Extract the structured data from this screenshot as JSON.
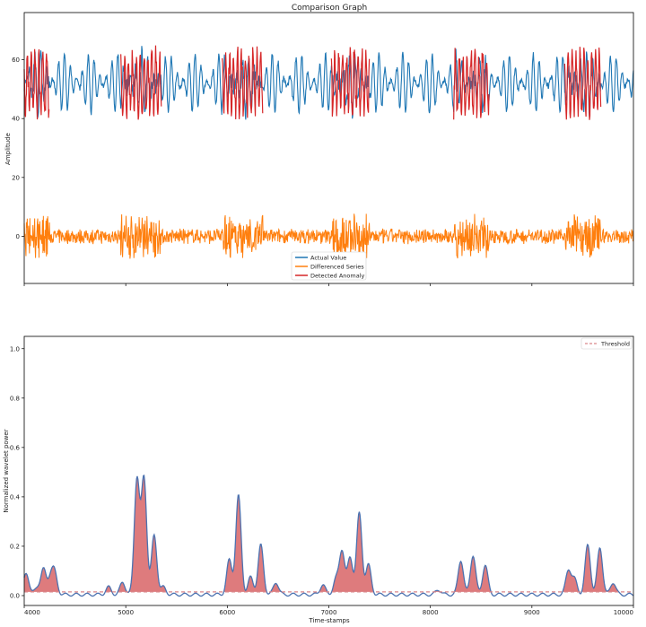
{
  "chart_data": [
    {
      "type": "line",
      "title": "Comparison Graph",
      "xlabel": "",
      "ylabel": "Amplitude",
      "xlim": [
        4000,
        10000
      ],
      "ylim": [
        -16,
        76
      ],
      "yticks": [
        0,
        20,
        40,
        60
      ],
      "grid": false,
      "legend_placement": "bottom-center",
      "series": [
        {
          "name": "Actual Value",
          "color": "#1f77b4",
          "baseline": 52,
          "amplitude": 10
        },
        {
          "name": "Differenced Series",
          "color": "#ff7f0e",
          "baseline": 0,
          "amplitude": 3
        },
        {
          "name": "Detected Anomaly",
          "color": "#d62728",
          "baseline": 52,
          "amplitude": 13
        }
      ],
      "anomaly_windows": [
        {
          "start": 4000,
          "end": 4250
        },
        {
          "start": 4950,
          "end": 5350
        },
        {
          "start": 5950,
          "end": 6350
        },
        {
          "start": 7020,
          "end": 7400
        },
        {
          "start": 8230,
          "end": 8580
        },
        {
          "start": 9320,
          "end": 9680
        }
      ]
    },
    {
      "type": "area",
      "xlabel": "Time-stamps",
      "ylabel": "Normalized wavelet power",
      "xlim": [
        4000,
        10000
      ],
      "ylim": [
        -0.04,
        1.05
      ],
      "xticks": [
        4000,
        5000,
        6000,
        7000,
        8000,
        9000,
        10000
      ],
      "yticks": [
        0.0,
        0.2,
        0.4,
        0.6,
        0.8,
        1.0
      ],
      "grid": false,
      "legend_placement": "top-right",
      "series": [
        {
          "name": "Threshold",
          "color": "#d9868a",
          "style": "dashed",
          "value": 0.015
        },
        {
          "name": "power",
          "color": "#4c72b0",
          "fill": "#d86466"
        }
      ],
      "peaks": [
        {
          "x": 4020,
          "y": 0.09
        },
        {
          "x": 4130,
          "y": 0.03
        },
        {
          "x": 4190,
          "y": 0.1
        },
        {
          "x": 4260,
          "y": 0.07
        },
        {
          "x": 4300,
          "y": 0.08
        },
        {
          "x": 4830,
          "y": 0.03
        },
        {
          "x": 4970,
          "y": 0.05
        },
        {
          "x": 5110,
          "y": 0.47
        },
        {
          "x": 5180,
          "y": 0.47
        },
        {
          "x": 5280,
          "y": 0.24
        },
        {
          "x": 5370,
          "y": 0.03
        },
        {
          "x": 6020,
          "y": 0.14
        },
        {
          "x": 6110,
          "y": 0.4
        },
        {
          "x": 6230,
          "y": 0.07
        },
        {
          "x": 6330,
          "y": 0.2
        },
        {
          "x": 6480,
          "y": 0.05
        },
        {
          "x": 6940,
          "y": 0.04
        },
        {
          "x": 7070,
          "y": 0.06
        },
        {
          "x": 7130,
          "y": 0.18
        },
        {
          "x": 7210,
          "y": 0.15
        },
        {
          "x": 7300,
          "y": 0.33
        },
        {
          "x": 7390,
          "y": 0.12
        },
        {
          "x": 8080,
          "y": 0.02
        },
        {
          "x": 8300,
          "y": 0.14
        },
        {
          "x": 8420,
          "y": 0.16
        },
        {
          "x": 8540,
          "y": 0.12
        },
        {
          "x": 9360,
          "y": 0.1
        },
        {
          "x": 9420,
          "y": 0.06
        },
        {
          "x": 9550,
          "y": 0.2
        },
        {
          "x": 9670,
          "y": 0.19
        },
        {
          "x": 9800,
          "y": 0.05
        }
      ]
    }
  ]
}
